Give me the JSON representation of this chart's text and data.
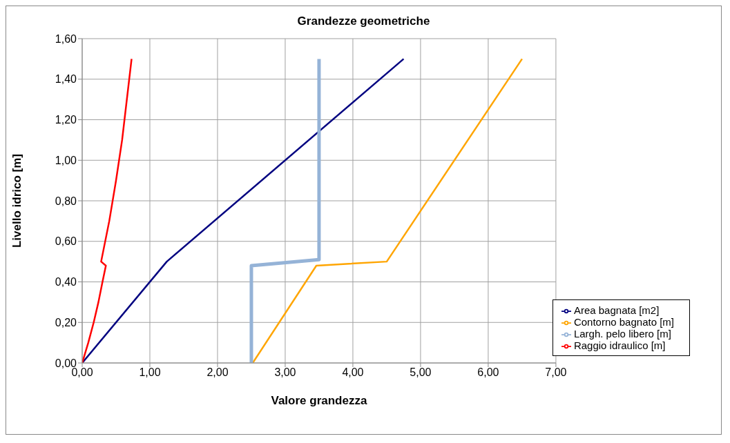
{
  "chart_data": {
    "type": "line",
    "title": "Grandezze geometriche",
    "xlabel": "Valore grandezza",
    "ylabel": "Livello idrico [m]",
    "xlim": [
      0,
      7
    ],
    "ylim": [
      0,
      1.6
    ],
    "xticks": [
      {
        "value": 0,
        "label": "0,00"
      },
      {
        "value": 1,
        "label": "1,00"
      },
      {
        "value": 2,
        "label": "2,00"
      },
      {
        "value": 3,
        "label": "3,00"
      },
      {
        "value": 4,
        "label": "4,00"
      },
      {
        "value": 5,
        "label": "5,00"
      },
      {
        "value": 6,
        "label": "6,00"
      },
      {
        "value": 7,
        "label": "7,00"
      }
    ],
    "yticks": [
      {
        "value": 0,
        "label": "0,00"
      },
      {
        "value": 0.2,
        "label": "0,20"
      },
      {
        "value": 0.4,
        "label": "0,40"
      },
      {
        "value": 0.6,
        "label": "0,60"
      },
      {
        "value": 0.8,
        "label": "0,80"
      },
      {
        "value": 1,
        "label": "1,00"
      },
      {
        "value": 1.2,
        "label": "1,20"
      },
      {
        "value": 1.4,
        "label": "1,40"
      },
      {
        "value": 1.6,
        "label": "1,60"
      }
    ],
    "grid": true,
    "legend": "bottom right",
    "marker": "none",
    "line_style": "solid",
    "series": [
      {
        "name": "Area bagnata [m2]",
        "color": "#000080",
        "x": [
          0,
          1.25,
          4.75
        ],
        "values": [
          0,
          0.5,
          1.5
        ]
      },
      {
        "name": "Contorno bagnato [m]",
        "color": "#ffa500",
        "x": [
          2.52,
          3.46,
          4.5,
          6.5
        ],
        "values": [
          0,
          0.48,
          0.5,
          1.5
        ]
      },
      {
        "name": "Largh. pelo libero [m]",
        "color": "#95b3d7",
        "x": [
          2.5,
          2.5,
          3.5,
          3.5
        ],
        "values": [
          0,
          0.48,
          0.51,
          1.5
        ]
      },
      {
        "name": "Raggio idraulico [m]",
        "color": "#ff0000",
        "x": [
          0,
          0.09,
          0.17,
          0.24,
          0.3,
          0.35,
          0.28,
          0.4,
          0.5,
          0.59,
          0.66,
          0.73
        ],
        "values": [
          0,
          0.1,
          0.2,
          0.3,
          0.4,
          0.48,
          0.5,
          0.7,
          0.9,
          1.1,
          1.3,
          1.5
        ]
      }
    ]
  }
}
